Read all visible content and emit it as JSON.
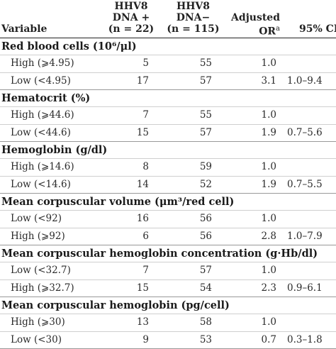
{
  "header": {
    "variable": "Variable",
    "col1_line1": "HHV8",
    "col1_line2": "DNA +",
    "col1_n": "(n = 22)",
    "col2_line1": "HHV8",
    "col2_line2": "DNA−",
    "col2_n": "(n = 115)",
    "col3_line1": "Adjusted",
    "col3_line2": "OR",
    "col3_sup": "a",
    "col4": "95% CI"
  },
  "sections": [
    {
      "title": "Red blood cells (10⁶/μl)",
      "rows": [
        {
          "label": "High (⩾4.95)",
          "pos": "5",
          "neg": "55",
          "or": "1.0",
          "ci": ""
        },
        {
          "label": "Low (<4.95)",
          "pos": "17",
          "neg": "57",
          "or": "3.1",
          "ci": "1.0–9.4"
        }
      ]
    },
    {
      "title": "Hematocrit (%)",
      "rows": [
        {
          "label": "High (⩾44.6)",
          "pos": "7",
          "neg": "55",
          "or": "1.0",
          "ci": ""
        },
        {
          "label": "Low (<44.6)",
          "pos": "15",
          "neg": "57",
          "or": "1.9",
          "ci": "0.7–5.6"
        }
      ]
    },
    {
      "title": "Hemoglobin (g/dl)",
      "rows": [
        {
          "label": "High (⩾14.6)",
          "pos": "8",
          "neg": "59",
          "or": "1.0",
          "ci": ""
        },
        {
          "label": "Low (<14.6)",
          "pos": "14",
          "neg": "52",
          "or": "1.9",
          "ci": "0.7–5.5"
        }
      ]
    },
    {
      "title": "Mean corpuscular volume (μm³/red cell)",
      "rows": [
        {
          "label": "Low (<92)",
          "pos": "16",
          "neg": "56",
          "or": "1.0",
          "ci": ""
        },
        {
          "label": "High (⩾92)",
          "pos": "6",
          "neg": "56",
          "or": "2.8",
          "ci": "1.0–7.9"
        }
      ]
    },
    {
      "title": "Mean corpuscular hemoglobin concentration (g·Hb/dl)",
      "rows": [
        {
          "label": "Low (<32.7)",
          "pos": "7",
          "neg": "57",
          "or": "1.0",
          "ci": ""
        },
        {
          "label": "High (⩾32.7)",
          "pos": "15",
          "neg": "54",
          "or": "2.3",
          "ci": "0.9–6.1"
        }
      ]
    },
    {
      "title": "Mean corpuscular hemoglobin (pg/cell)",
      "rows": [
        {
          "label": "High (⩾30)",
          "pos": "13",
          "neg": "58",
          "or": "1.0",
          "ci": ""
        },
        {
          "label": "Low (<30)",
          "pos": "9",
          "neg": "53",
          "or": "0.7",
          "ci": "0.3–1.8"
        }
      ]
    }
  ]
}
